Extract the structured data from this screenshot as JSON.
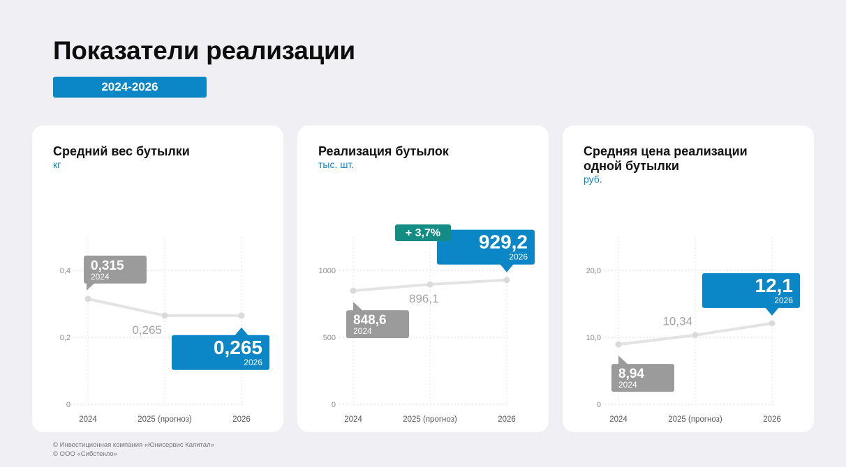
{
  "page": {
    "title": "Показатели реализации",
    "period": "2024-2026",
    "footer": [
      "© Инвестиционная компания «Юнисервис Капитал»",
      "© ООО «Сибстекло»"
    ]
  },
  "colors": {
    "accent": "#0b86c6",
    "gray": "#9b9b9b",
    "teal": "#138d84",
    "line": "#e3e3e3"
  },
  "chart_data": [
    {
      "type": "line",
      "title": "Средний вес бутылки",
      "ylabel": "кг",
      "categories": [
        "2024",
        "2025 (прогноз)",
        "2026"
      ],
      "series": [
        {
          "values": [
            0.315,
            0.265,
            0.265
          ]
        }
      ],
      "ylim": [
        0,
        0.5
      ],
      "yticks": [
        0,
        0.2,
        0.4
      ],
      "ytick_labels": [
        "0",
        "0,2",
        "0,4"
      ],
      "grid": true,
      "labels": [
        {
          "index": 0,
          "text": "0,315",
          "year": "2024",
          "style": "gray"
        },
        {
          "index": 1,
          "text": "0,265",
          "style": "plain"
        },
        {
          "index": 2,
          "text": "0,265",
          "year": "2026",
          "style": "blue"
        }
      ]
    },
    {
      "type": "line",
      "title": "Реализация бутылок",
      "ylabel": "тыс. шт.",
      "categories": [
        "2024",
        "2025 (прогноз)",
        "2026"
      ],
      "series": [
        {
          "values": [
            848.6,
            896.1,
            929.2
          ]
        }
      ],
      "ylim": [
        0,
        1250
      ],
      "yticks": [
        0,
        500,
        1000
      ],
      "ytick_labels": [
        "0",
        "500",
        "1000"
      ],
      "grid": true,
      "labels": [
        {
          "index": 0,
          "text": "848,6",
          "year": "2024",
          "style": "gray"
        },
        {
          "index": 1,
          "text": "896,1",
          "style": "plain"
        },
        {
          "index": 2,
          "text": "929,2",
          "year": "2026",
          "style": "blue"
        }
      ],
      "annotation": "+ 3,7%"
    },
    {
      "type": "line",
      "title": "Средняя цена реализации одной бутылки",
      "ylabel": "руб.",
      "categories": [
        "2024",
        "2025 (прогноз)",
        "2026"
      ],
      "series": [
        {
          "values": [
            8.94,
            10.34,
            12.1
          ]
        }
      ],
      "ylim": [
        0,
        25
      ],
      "yticks": [
        0,
        10,
        20
      ],
      "ytick_labels": [
        "0",
        "10,0",
        "20,0"
      ],
      "grid": true,
      "labels": [
        {
          "index": 0,
          "text": "8,94",
          "year": "2024",
          "style": "gray"
        },
        {
          "index": 1,
          "text": "10,34",
          "style": "plain"
        },
        {
          "index": 2,
          "text": "12,1",
          "year": "2026",
          "style": "blue"
        }
      ]
    }
  ]
}
